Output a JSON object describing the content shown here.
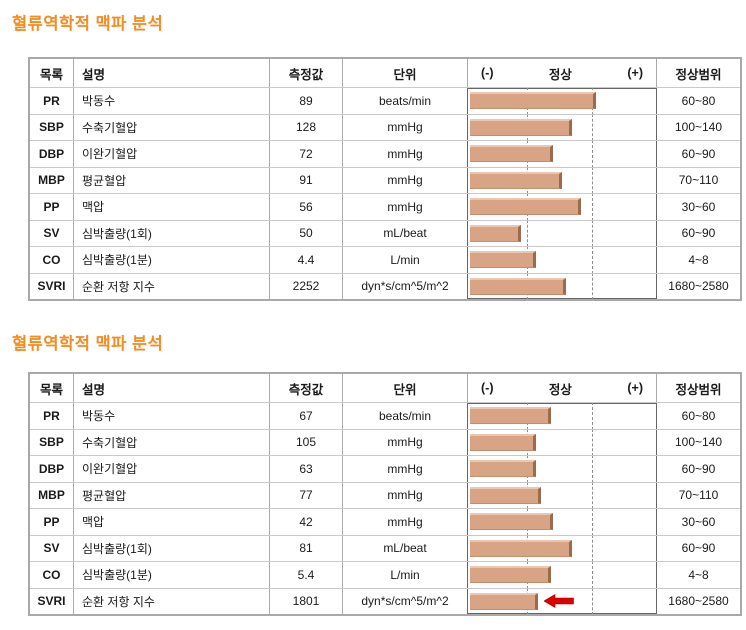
{
  "colors": {
    "title_orange": "#F68B1F",
    "bar_fill": "#D9A486",
    "bar_edge_dark": "#9A6C4F",
    "bar_edge_light": "#EAC7AE",
    "arrow_red": "#DD0000",
    "grid_gray": "#ABABAB"
  },
  "headers": {
    "item": "목록",
    "description": "설명",
    "value": "측정값",
    "unit": "단위",
    "minus": "(-)",
    "normal": "정상",
    "plus": "(+)",
    "range": "정상범위"
  },
  "tables": [
    {
      "title": "혈류역학적 맥파 분석",
      "rows": [
        {
          "code": "PR",
          "description": "박동수",
          "value": "89",
          "unit": "beats/min",
          "bar_pct": 67,
          "normal_range": "60~80"
        },
        {
          "code": "SBP",
          "description": "수축기혈압",
          "value": "128",
          "unit": "mmHg",
          "bar_pct": 54,
          "normal_range": "100~140"
        },
        {
          "code": "DBP",
          "description": "이완기혈압",
          "value": "72",
          "unit": "mmHg",
          "bar_pct": 44,
          "normal_range": "60~90"
        },
        {
          "code": "MBP",
          "description": "평균혈압",
          "value": "91",
          "unit": "mmHg",
          "bar_pct": 49,
          "normal_range": "70~110"
        },
        {
          "code": "PP",
          "description": "맥압",
          "value": "56",
          "unit": "mmHg",
          "bar_pct": 59,
          "normal_range": "30~60"
        },
        {
          "code": "SV",
          "description": "심박출량(1회)",
          "value": "50",
          "unit": "mL/beat",
          "bar_pct": 27,
          "normal_range": "60~90"
        },
        {
          "code": "CO",
          "description": "심박출량(1분)",
          "value": "4.4",
          "unit": "L/min",
          "bar_pct": 35,
          "normal_range": "4~8"
        },
        {
          "code": "SVRI",
          "description": "순환 저항 지수",
          "value": "2252",
          "unit": "dyn*s/cm^5/m^2",
          "bar_pct": 51,
          "normal_range": "1680~2580"
        }
      ]
    },
    {
      "title": "혈류역학적 맥파 분석",
      "rows": [
        {
          "code": "PR",
          "description": "박동수",
          "value": "67",
          "unit": "beats/min",
          "bar_pct": 43,
          "normal_range": "60~80"
        },
        {
          "code": "SBP",
          "description": "수축기혈압",
          "value": "105",
          "unit": "mmHg",
          "bar_pct": 35,
          "normal_range": "100~140"
        },
        {
          "code": "DBP",
          "description": "이완기혈압",
          "value": "63",
          "unit": "mmHg",
          "bar_pct": 35,
          "normal_range": "60~90"
        },
        {
          "code": "MBP",
          "description": "평균혈압",
          "value": "77",
          "unit": "mmHg",
          "bar_pct": 38,
          "normal_range": "70~110"
        },
        {
          "code": "PP",
          "description": "맥압",
          "value": "42",
          "unit": "mmHg",
          "bar_pct": 44,
          "normal_range": "30~60"
        },
        {
          "code": "SV",
          "description": "심박출량(1회)",
          "value": "81",
          "unit": "mL/beat",
          "bar_pct": 54,
          "normal_range": "60~90"
        },
        {
          "code": "CO",
          "description": "심박출량(1분)",
          "value": "5.4",
          "unit": "L/min",
          "bar_pct": 43,
          "normal_range": "4~8"
        },
        {
          "code": "SVRI",
          "description": "순환 저항 지수",
          "value": "1801",
          "unit": "dyn*s/cm^5/m^2",
          "bar_pct": 36,
          "normal_range": "1680~2580",
          "marker": "red-arrow-left"
        }
      ]
    }
  ]
}
